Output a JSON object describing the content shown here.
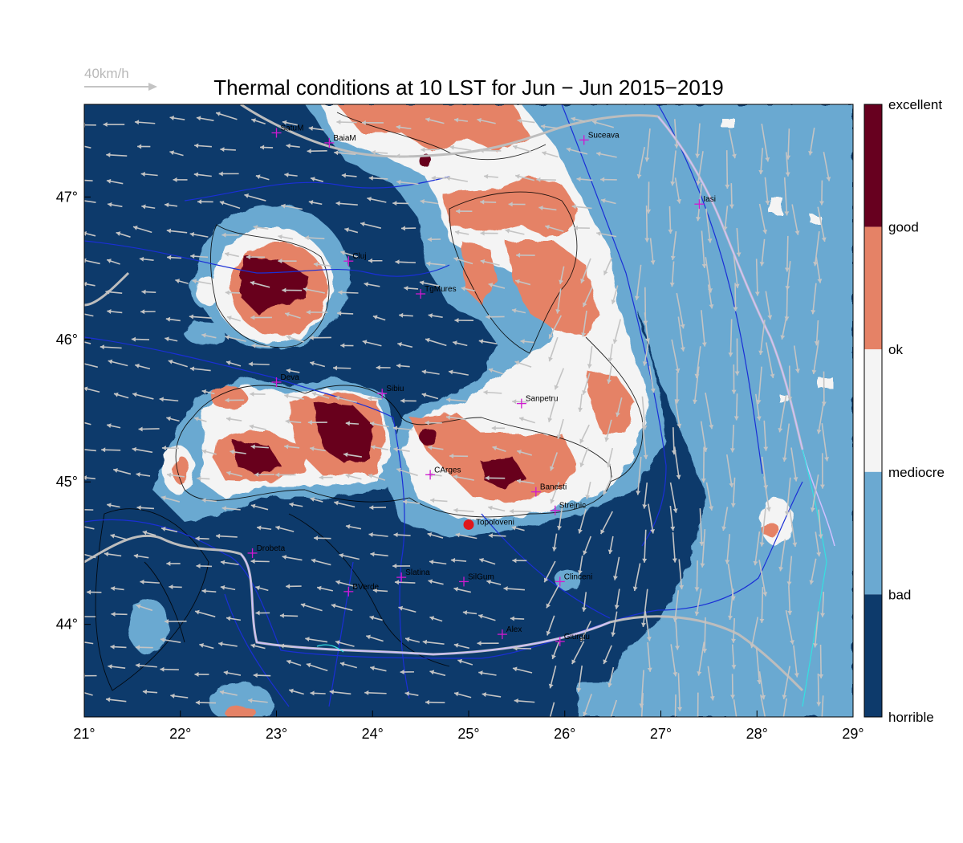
{
  "title": "Thermal conditions at 10 LST for Jun − Jun  2015−2019",
  "wind_reference": {
    "label": "40km/h",
    "speed_kmh": 40
  },
  "legend": {
    "labels": [
      "excellent",
      "good",
      "ok",
      "mediocre",
      "bad",
      "horrible"
    ],
    "classes": [
      {
        "name": "excellent",
        "color": "#67001f"
      },
      {
        "name": "good",
        "color": "#e58266"
      },
      {
        "name": "ok",
        "color": "#f4f4f4"
      },
      {
        "name": "mediocre",
        "color": "#6ba9d1"
      },
      {
        "name": "bad",
        "color": "#0d3a6b"
      }
    ]
  },
  "colors": {
    "horrible": "#0d3a6b",
    "bad": "#6ba9d1",
    "mediocre": "#f4f4f4",
    "ok": "#e58266",
    "good": "#67001f",
    "river": "#1a2fd6",
    "border": "#bdbdbd",
    "wind": "#c4c4c4",
    "city": "#d01ad0",
    "marker": "#e0161b"
  },
  "axes": {
    "lon_range": [
      21,
      29
    ],
    "lat_range": [
      43.35,
      47.65
    ],
    "x_ticks": [
      "21°",
      "22°",
      "23°",
      "24°",
      "25°",
      "26°",
      "27°",
      "28°",
      "29°"
    ],
    "y_ticks": [
      "44°",
      "45°",
      "46°",
      "47°"
    ]
  },
  "cities": [
    {
      "name": "SatuM",
      "lon": 23.0,
      "lat": 47.45
    },
    {
      "name": "BaiaM",
      "lon": 23.55,
      "lat": 47.38
    },
    {
      "name": "Suceava",
      "lon": 26.2,
      "lat": 47.4
    },
    {
      "name": "Iasi",
      "lon": 27.4,
      "lat": 46.95
    },
    {
      "name": "Cluj",
      "lon": 23.75,
      "lat": 46.55
    },
    {
      "name": "TgMures",
      "lon": 24.5,
      "lat": 46.32
    },
    {
      "name": "Deva",
      "lon": 23.0,
      "lat": 45.7
    },
    {
      "name": "Sibiu",
      "lon": 24.1,
      "lat": 45.62
    },
    {
      "name": "Sanpetru",
      "lon": 25.55,
      "lat": 45.55
    },
    {
      "name": "CArges",
      "lon": 24.6,
      "lat": 45.05
    },
    {
      "name": "Banesti",
      "lon": 25.7,
      "lat": 44.93
    },
    {
      "name": "Strejnic",
      "lon": 25.9,
      "lat": 44.8
    },
    {
      "name": "Drobeta",
      "lon": 22.75,
      "lat": 44.5
    },
    {
      "name": "Slatina",
      "lon": 24.3,
      "lat": 44.33
    },
    {
      "name": "SilGum",
      "lon": 24.95,
      "lat": 44.3
    },
    {
      "name": "Clinceni",
      "lon": 25.95,
      "lat": 44.3
    },
    {
      "name": "BVerde",
      "lon": 23.75,
      "lat": 44.23
    },
    {
      "name": "Alex",
      "lon": 25.35,
      "lat": 43.93
    },
    {
      "name": "Giurgiu",
      "lon": 25.95,
      "lat": 43.88
    }
  ],
  "highlight": {
    "name": "Topoloveni",
    "lon": 25.0,
    "lat": 44.7
  }
}
